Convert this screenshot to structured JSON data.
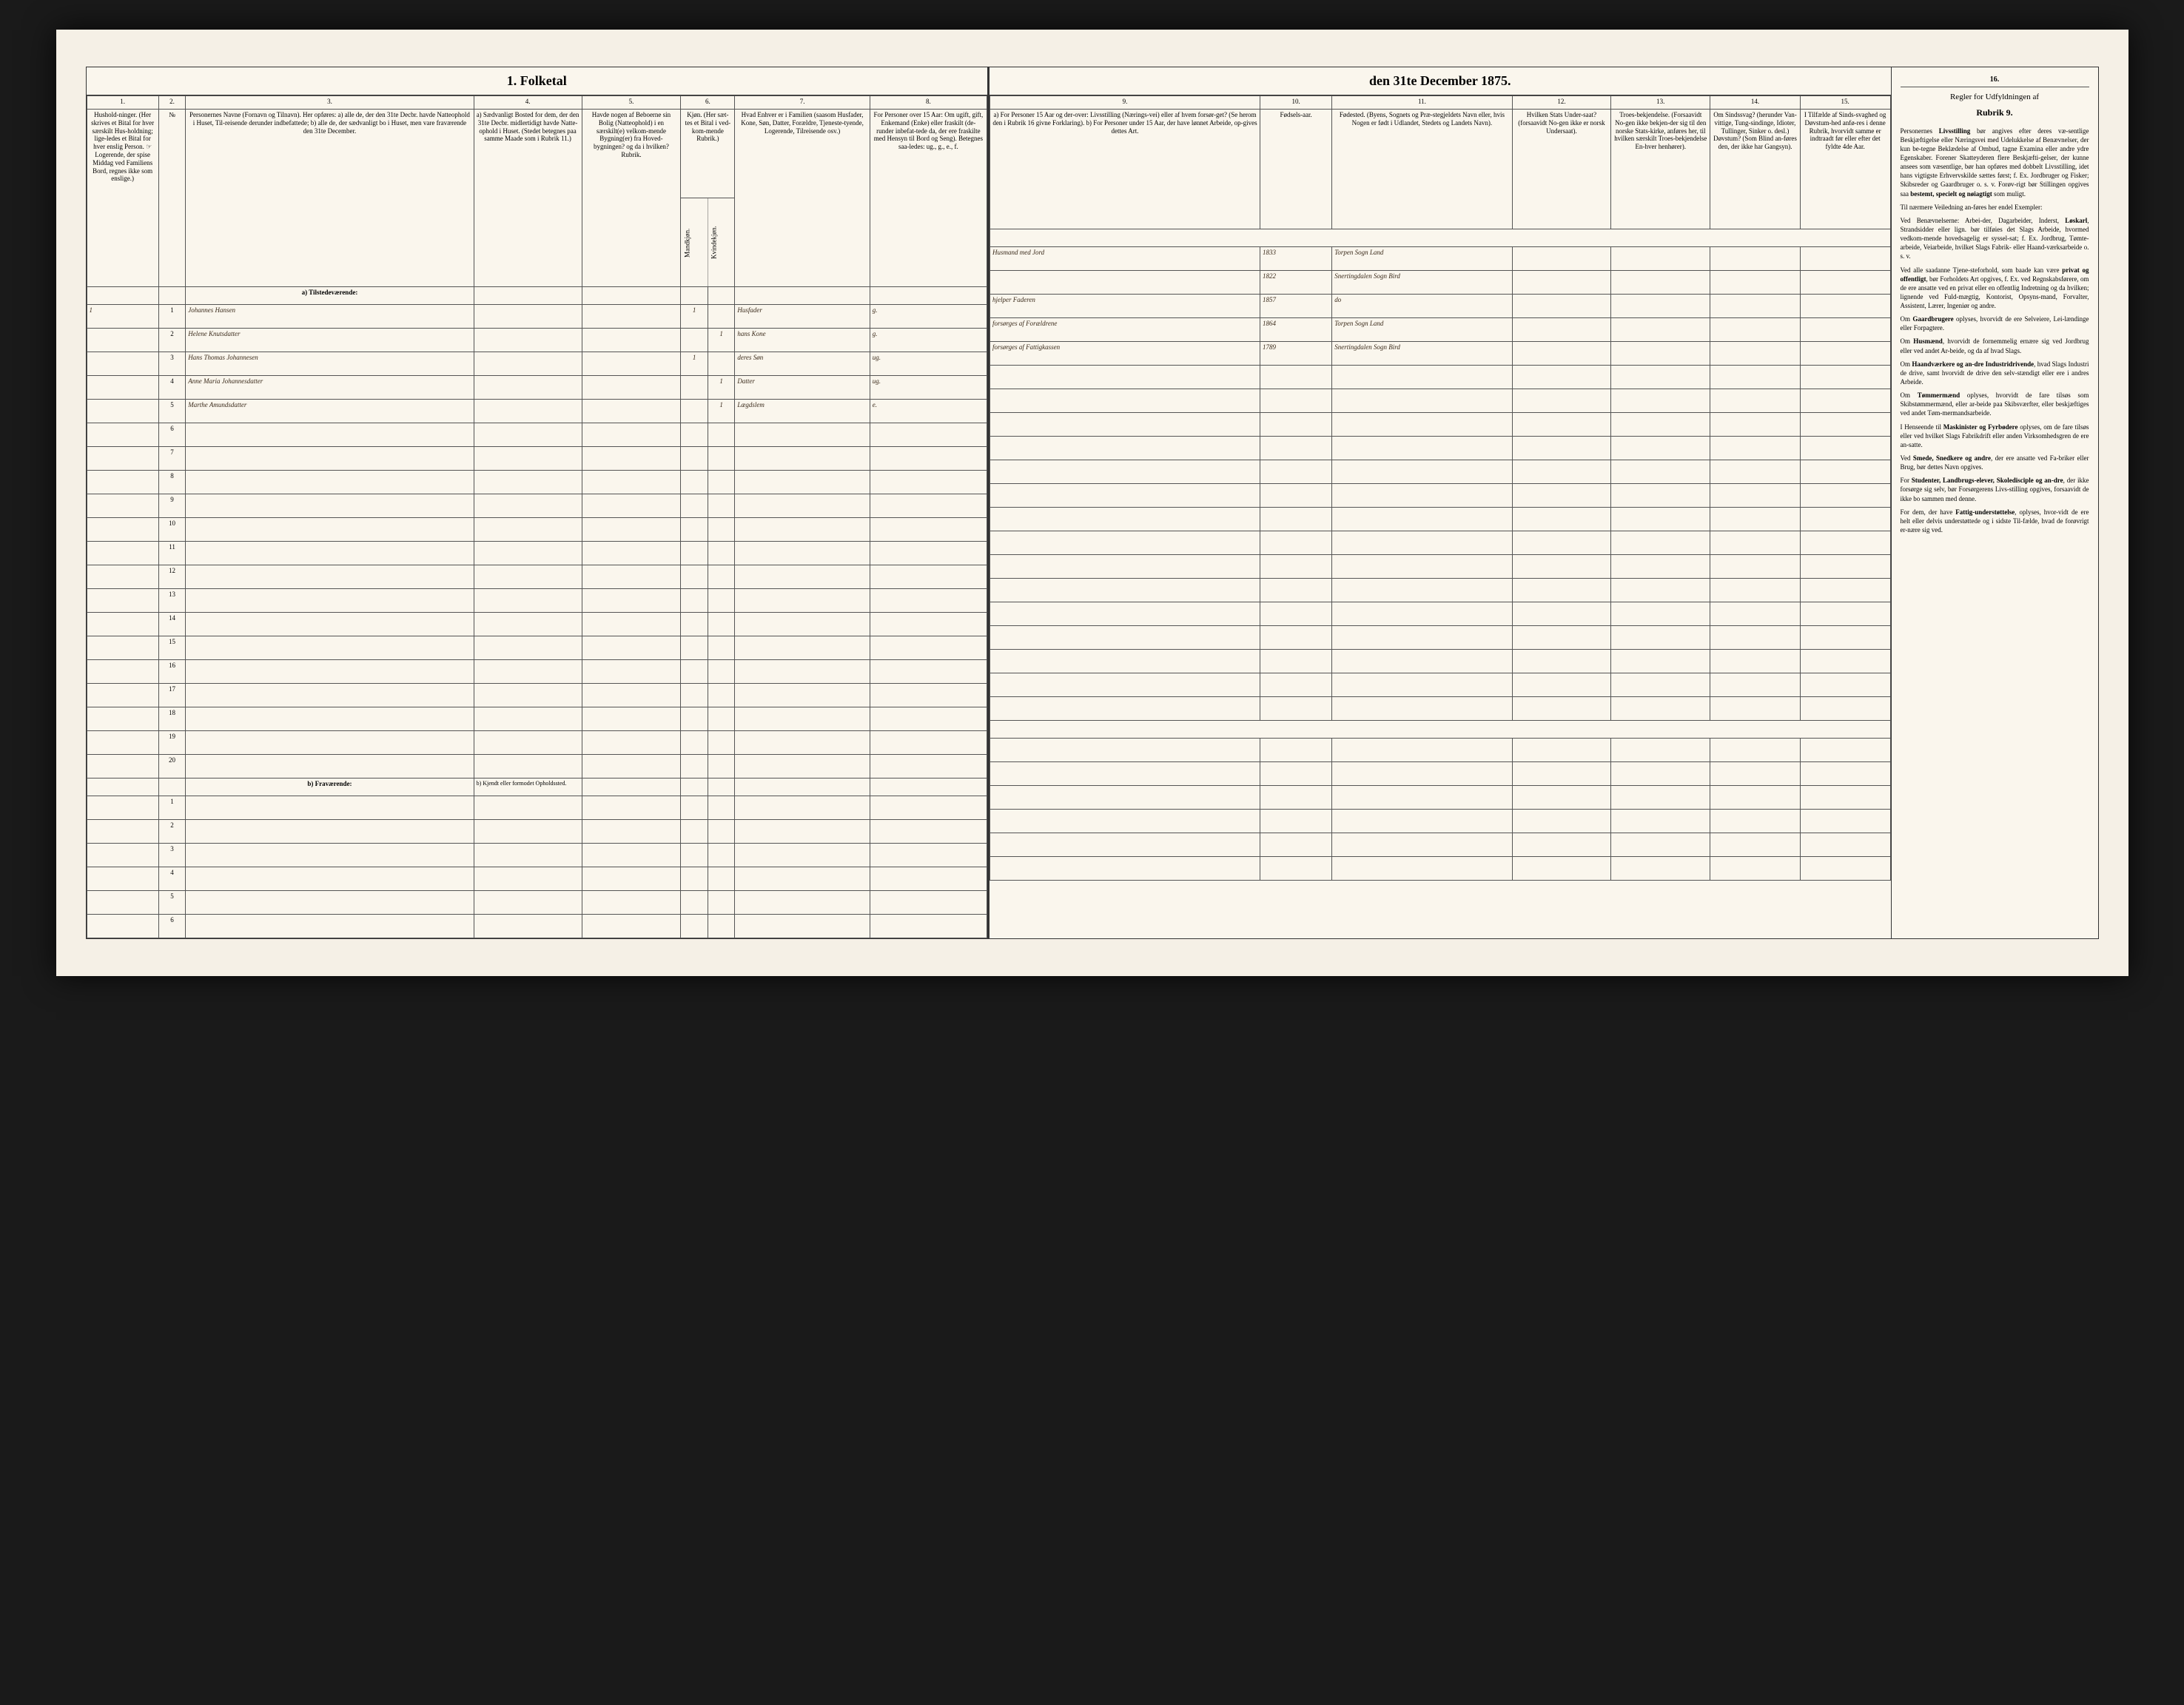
{
  "colors": {
    "page_bg": "#faf6ed",
    "frame_bg": "#f5f0e6",
    "border": "#333333",
    "handwriting": "#3a2a1a",
    "outer_bg": "#1a1a1a"
  },
  "title": "1. Folketal den 31te December 1875.",
  "left_columns": {
    "nums": [
      "1.",
      "2.",
      "3.",
      "4.",
      "5.",
      "6.",
      "7.",
      "8."
    ],
    "headers": [
      "Hushold-ninger. (Her skrives et Bital for hver særskilt Hus-holdning; lige-ledes et Bital for hver enslig Person. ☞ Logerende, der spise Middag ved Familiens Bord, regnes ikke som enslige.)",
      "№",
      "Personernes Navne (Fornavn og Tilnavn). Her opføres: a) alle de, der den 31te Decbr. havde Natteophold i Huset, Til-reisende derunder indbefattede; b) alle de, der sædvanligt bo i Huset, men vare fraværende den 31te December.",
      "a) Sædvanligt Bosted for dem, der den 31te Decbr. midlertidigt havde Natte-ophold i Huset. (Stedet betegnes paa samme Maade som i Rubrik 11.)",
      "Havde nogen af Beboerne sin Bolig (Natteophold) i en særskilt(e) velkom-mende Bygning(er) fra Hoved-bygningen? og da i hvilken? Rubrik.",
      "Kjøn. (Her sæt-tes et Bital i ved-kom-mende Rubrik.)",
      "Hvad Enhver er i Familien (saasom Husfader, Kone, Søn, Datter, Forældre, Tjeneste-tyende, Logerende, Tilreisende osv.)",
      "For Personer over 15 Aar: Om ugift, gift, Enkemand (Enke) eller fraskilt (de-runder inbefat-tede da, der ere fraskilte med Hensyn til Bord og Seng). Betegnes saa-ledes: ug., g., e., f."
    ],
    "gender_sub": [
      "Mandkjøn.",
      "Kvindekjøn."
    ]
  },
  "right_columns": {
    "nums": [
      "9.",
      "10.",
      "11.",
      "12.",
      "13.",
      "14.",
      "15.",
      "16."
    ],
    "headers": [
      "a) For Personer 15 Aar og der-over: Livsstilling (Nærings-vei) eller af hvem forsør-get? (Se herom den i Rubrik 16 givne Forklaring). b) For Personer under 15 Aar, der have lønnet Arbeide, op-gives dettes Art.",
      "Fødsels-aar.",
      "Fødested. (Byens, Sognets og Præ-stegjeldets Navn eller, hvis Nogen er født i Udlandet, Stedets og Landets Navn).",
      "Hvilken Stats Under-saat? (forsaavidt No-gen ikke er norsk Undersaat).",
      "Troes-bekjendelse. (Forsaavidt No-gen ikke bekjen-der sig til den norske Stats-kirke, anføres her, til hvilken særskilt Troes-bekjendelse En-hver henhører).",
      "Om Sindssvag? (herunder Van-vittige, Tung-sindinge, Idioter, Tullinger, Sinker o. desl.) Døvstum? (Som Blind an-føres den, der ikke har Gangsyn).",
      "I Tilfælde af Sinds-svaghed og Døvstum-hed anfø-res i denne Rubrik, hvorvidt samme er indtraadt før eller efter det fyldte 4de Aar.",
      "Regler for Udfyldningen af Rubrik 9."
    ]
  },
  "section_a": "a) Tilstedeværende:",
  "section_b": "b) Fraværende:",
  "section_b_note": "b) Kjendt eller formodet Opholdssted.",
  "entries": [
    {
      "hh": "1",
      "pn": "1",
      "name": "Johannes Hansen",
      "col4": "",
      "col5": "",
      "m": "1",
      "k": "",
      "family": "Husfader",
      "marital": "g.",
      "occupation": "Husmand med Jord",
      "year": "1833",
      "birthplace": "Torpen Sogn Land"
    },
    {
      "hh": "",
      "pn": "2",
      "name": "Helene Knutsdatter",
      "col4": "",
      "col5": "",
      "m": "",
      "k": "1",
      "family": "hans Kone",
      "marital": "g.",
      "occupation": "",
      "year": "1822",
      "birthplace": "Snertingdalen Sogn Bird"
    },
    {
      "hh": "",
      "pn": "3",
      "name": "Hans Thomas Johannesen",
      "col4": "",
      "col5": "",
      "m": "1",
      "k": "",
      "family": "deres Søn",
      "marital": "ug.",
      "occupation": "hjelper Faderen",
      "year": "1857",
      "birthplace": "do"
    },
    {
      "hh": "",
      "pn": "4",
      "name": "Anne Maria Johannesdatter",
      "col4": "",
      "col5": "",
      "m": "",
      "k": "1",
      "family": "Datter",
      "marital": "ug.",
      "occupation": "forsørges af Forældrene",
      "year": "1864",
      "birthplace": "Torpen Sogn Land"
    },
    {
      "hh": "",
      "pn": "5",
      "name": "Marthe Amundsdatter",
      "col4": "",
      "col5": "",
      "m": "",
      "k": "1",
      "family": "Lægdslem",
      "marital": "e.",
      "occupation": "forsørges af Fattigkassen",
      "year": "1789",
      "birthplace": "Snertingdalen Sogn Bird"
    }
  ],
  "rows_present": 20,
  "rows_absent": 6,
  "instructions": {
    "title": "Regler for Udfyldningen af",
    "subtitle": "Rubrik 9.",
    "paragraphs": [
      "Personernes <b>Livsstilling</b> bør angives efter deres væ-sentlige Beskjæftigelse eller Næringsvei med Udelukkelse af Benævnelser, der kun be-tegne Beklædelse af Ombud, tagne Examina eller andre ydre Egenskaber. Forener Skatteyderen flere Beskjæfti-gelser, der kunne ansees som væsentlige, bør han opføres med dobbelt Livsstilling, idet hans vigtigste Erhvervskilde sættes først; f. Ex. Jordbruger og Fisker; Skibsreder og Gaardbruger o. s. v. Forøv-rigt bør Stillingen opgives saa <b>bestemt, specielt og nøiagtigt</b> som muligt.",
      "Til nærmere Veiledning an-føres her endel Exempler:",
      "Ved Benævnelserne: Arbei-der, Dagarbeider, Inderst, <b>Løskarl</b>, Strandsidder eller lign. bør tilføies det Slags Arbeide, hvormed vedkom-mende hovedsagelig er syssel-sat; f. Ex. Jordbrug, Tømte-arbeide, Veiarbeide, hvilket Slags Fabrik- eller Haand-værksarbeide o. s. v.",
      "Ved alle saadanne Tjene-steforhold, som baade kan være <b>privat og offentligt</b>, bør Forholdets Art opgives, f. Ex. ved Regnskabsførere, om de ere ansatte ved en privat eller en offentlig Indretning og da hvilken; lignende ved Fuld-mægtig, Kontorist, Opsyns-mand, Forvalter, Assistent, Lærer, Ingeniør og andre.",
      "Om <b>Gaardbrugere</b> oplyses, hvorvidt de ere Selveiere, Lei-lændinge eller Forpagtere.",
      "Om <b>Husmænd</b>, hvorvidt de fornemmelig ernære sig ved Jordbrug eller ved andet Ar-beide, og da af hvad Slags.",
      "Om <b>Haandværkere og an-dre Industridrivende</b>, hvad Slags Industri de drive, samt hvorvidt de drive den selv-stændigt eller ere i andres Arbeide.",
      "Om <b>Tømmermænd</b> oplyses, hvorvidt de fare tilsøs som Skibstømmermænd, eller ar-beide paa Skibsværfter, eller beskjæftiges ved andet Tøm-mermandsarbeide.",
      "I Henseende til <b>Maskinister og Fyrbødere</b> oplyses, om de fare tilsøs eller ved hvilket Slags Fabrikdrift eller anden Virksomhedsgren de ere an-satte.",
      "Ved <b>Smede, Snedkere og andre</b>, der ere ansatte ved Fa-briker eller Brug, bør dettes Navn opgives.",
      "For <b>Studenter, Landbrugs-elever, Skoledisciple og an-dre</b>, der ikke forsørge sig selv, bør Forsørgerens Livs-stilling opgives, forsaavidt de ikke bo sammen med denne.",
      "For dem, der have <b>Fattig-understøttelse</b>, oplyses, hvor-vidt de ere helt eller delvis understøttede og i sidste Til-fælde, hvad de forøvrigt er-nære sig ved."
    ]
  }
}
